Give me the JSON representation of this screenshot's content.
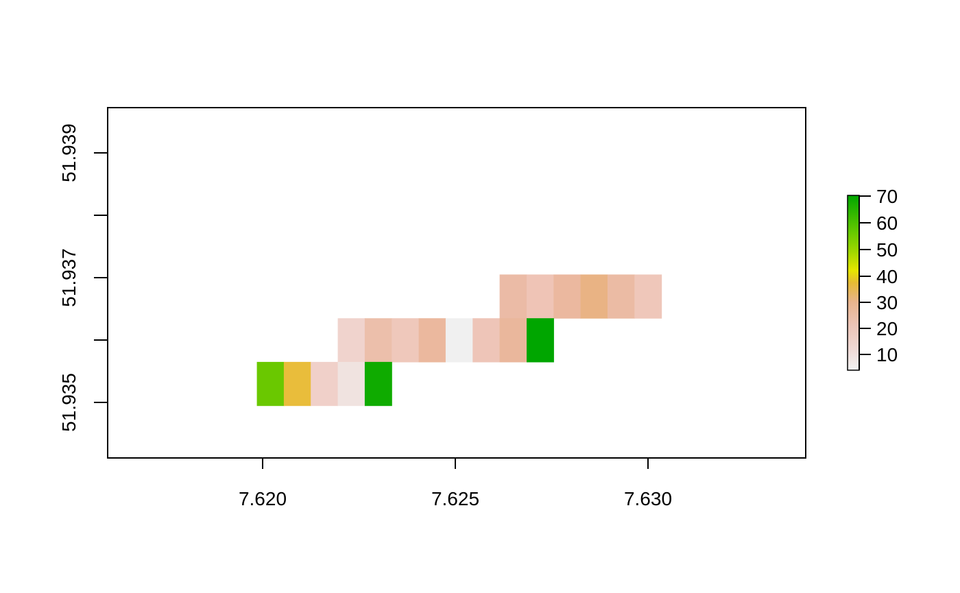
{
  "chart_data": {
    "type": "heatmap",
    "x_ticks": [
      "7.620",
      "7.625",
      "7.630"
    ],
    "y_ticks": [
      "51.935",
      "51.937",
      "51.939"
    ],
    "colorbar_ticks": [
      "10",
      "20",
      "30",
      "40",
      "50",
      "60",
      "70"
    ],
    "xlim": [
      7.616,
      7.634
    ],
    "ylim": [
      51.934,
      51.9398
    ],
    "colorbar_range": [
      2,
      70
    ],
    "cell_width": 0.0007,
    "cell_height": 0.0007,
    "grid": false,
    "legend": "right",
    "palette": [
      "#f2f2f2",
      "#ecc8bf",
      "#e9b48d",
      "#e5ba35",
      "#e6e600",
      "#61c800",
      "#00a600"
    ],
    "rows": [
      {
        "y": 51.9367,
        "x": [
          7.6265,
          7.6272,
          7.6279,
          7.6286,
          7.6293,
          7.63
        ],
        "values": [
          15,
          11,
          16,
          21,
          14,
          9
        ]
      },
      {
        "y": 51.936,
        "x": [
          7.6223,
          7.623,
          7.6237,
          7.6244,
          7.6251,
          7.6258,
          7.6265,
          7.6272
        ],
        "values": [
          7,
          14,
          10,
          16,
          2,
          11,
          16,
          70
        ]
      },
      {
        "y": 51.9353,
        "x": [
          7.6202,
          7.6209,
          7.6216,
          7.6223,
          7.623
        ],
        "values": [
          53,
          31,
          8,
          5,
          67
        ]
      }
    ],
    "cell_colors": [
      [
        "#ebbba6",
        "#efc4b6",
        "#ebb89f",
        "#e9b384",
        "#ebbba4",
        "#efc7ba"
      ],
      [
        "#f0d3cd",
        "#ecbfab",
        "#efc8bb",
        "#ebb89e",
        "#f0f0f0",
        "#eec5b8",
        "#eab79c",
        "#00a600"
      ],
      [
        "#6ac800",
        "#e9bd3b",
        "#f0d0c9",
        "#f0e3e0",
        "#0fab00"
      ]
    ]
  }
}
